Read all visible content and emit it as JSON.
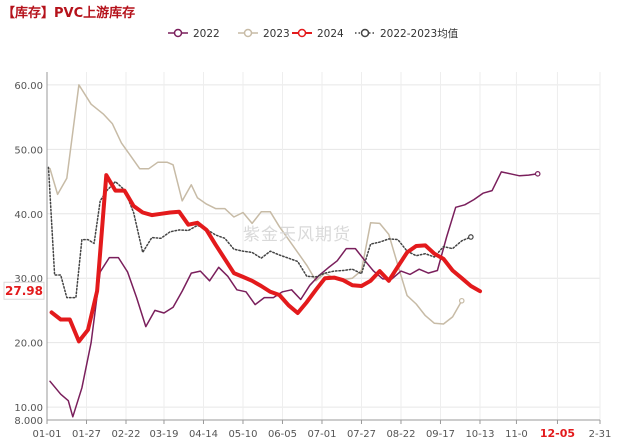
{
  "title": "【库存】PVC上游库存",
  "watermark": "紫金天风期货",
  "chart_data": {
    "type": "line",
    "title": "【库存】PVC上游库存",
    "xlabel": "",
    "ylabel": "",
    "ylim": [
      8,
      62
    ],
    "x_axis": {
      "first_date": "01-01",
      "last_date": "12-31"
    },
    "x_ticks": [
      "01-01",
      "01-27",
      "02-22",
      "03-19",
      "04-14",
      "05-10",
      "06-05",
      "07-01",
      "07-27",
      "08-22",
      "09-17",
      "10-13",
      "11-0",
      "12-05",
      "2-31"
    ],
    "x_tick_days": [
      1,
      27,
      53,
      78,
      104,
      130,
      156,
      182,
      208,
      234,
      260,
      286,
      310,
      337,
      365
    ],
    "highlight_tick": "12-05",
    "y_ticks": [
      "8.000",
      "10.00",
      "20.00",
      "30.00",
      "40.00",
      "50.00",
      "60.00"
    ],
    "y_tick_values": [
      8,
      10,
      20,
      30,
      40,
      50,
      60
    ],
    "current_value": {
      "label": "27.98",
      "value": 27.98
    },
    "grid": true,
    "legend_position": "top",
    "series": [
      {
        "name": "2022",
        "color": "#7a1f5c",
        "style": "line-marker",
        "points": [
          [
            3,
            14
          ],
          [
            10,
            12
          ],
          [
            15,
            11
          ],
          [
            18,
            8.5
          ],
          [
            24,
            13
          ],
          [
            30,
            20
          ],
          [
            36,
            31
          ],
          [
            42,
            33.2
          ],
          [
            48,
            33.2
          ],
          [
            54,
            31
          ],
          [
            60,
            27
          ],
          [
            66,
            22.5
          ],
          [
            72,
            25
          ],
          [
            78,
            24.6
          ],
          [
            84,
            25.5
          ],
          [
            90,
            28
          ],
          [
            96,
            30.8
          ],
          [
            102,
            31.1
          ],
          [
            108,
            29.6
          ],
          [
            114,
            31.7
          ],
          [
            120,
            30.3
          ],
          [
            126,
            28.2
          ],
          [
            132,
            27.9
          ],
          [
            138,
            25.9
          ],
          [
            144,
            27
          ],
          [
            150,
            27
          ],
          [
            156,
            27.9
          ],
          [
            162,
            28.2
          ],
          [
            168,
            26.7
          ],
          [
            174,
            28.9
          ],
          [
            180,
            30.4
          ],
          [
            186,
            31.6
          ],
          [
            192,
            32.7
          ],
          [
            198,
            34.6
          ],
          [
            204,
            34.6
          ],
          [
            210,
            32.8
          ],
          [
            216,
            31.1
          ],
          [
            222,
            29.9
          ],
          [
            228,
            29.9
          ],
          [
            234,
            31.1
          ],
          [
            240,
            30.6
          ],
          [
            246,
            31.4
          ],
          [
            252,
            30.8
          ],
          [
            258,
            31.2
          ],
          [
            264,
            36.4
          ],
          [
            270,
            41
          ],
          [
            276,
            41.4
          ],
          [
            282,
            42.2
          ],
          [
            288,
            43.2
          ],
          [
            294,
            43.6
          ],
          [
            300,
            46.5
          ],
          [
            306,
            46.2
          ],
          [
            312,
            45.9
          ],
          [
            318,
            46
          ],
          [
            324,
            46.2
          ]
        ]
      },
      {
        "name": "2023",
        "color": "#c7bba6",
        "style": "line-marker",
        "points": [
          [
            3,
            47
          ],
          [
            8,
            43
          ],
          [
            14,
            45.5
          ],
          [
            22,
            60
          ],
          [
            30,
            57
          ],
          [
            38,
            55.5
          ],
          [
            44,
            54
          ],
          [
            50,
            51
          ],
          [
            56,
            49
          ],
          [
            62,
            47
          ],
          [
            68,
            47
          ],
          [
            74,
            48
          ],
          [
            80,
            48
          ],
          [
            84,
            47.6
          ],
          [
            90,
            42
          ],
          [
            96,
            44.5
          ],
          [
            100,
            42.5
          ],
          [
            106,
            41.5
          ],
          [
            112,
            40.8
          ],
          [
            118,
            40.8
          ],
          [
            124,
            39.5
          ],
          [
            130,
            40.2
          ],
          [
            136,
            38.5
          ],
          [
            142,
            40.3
          ],
          [
            148,
            40.3
          ],
          [
            154,
            38
          ],
          [
            160,
            36
          ],
          [
            166,
            34
          ],
          [
            172,
            32
          ],
          [
            178,
            29.6
          ],
          [
            184,
            30.8
          ],
          [
            190,
            30
          ],
          [
            196,
            29.8
          ],
          [
            202,
            30
          ],
          [
            208,
            31.2
          ],
          [
            214,
            38.6
          ],
          [
            220,
            38.5
          ],
          [
            226,
            36.8
          ],
          [
            232,
            32
          ],
          [
            238,
            27.3
          ],
          [
            244,
            26
          ],
          [
            250,
            24.2
          ],
          [
            256,
            23
          ],
          [
            262,
            22.9
          ],
          [
            268,
            24
          ],
          [
            274,
            26.5
          ]
        ]
      },
      {
        "name": "2024",
        "color": "#e31a1c",
        "style": "thick-line",
        "points": [
          [
            4,
            24.7
          ],
          [
            10,
            23.6
          ],
          [
            16,
            23.6
          ],
          [
            22,
            20.2
          ],
          [
            28,
            22
          ],
          [
            34,
            28
          ],
          [
            40,
            46
          ],
          [
            46,
            43.6
          ],
          [
            52,
            43.6
          ],
          [
            58,
            41.2
          ],
          [
            64,
            40.2
          ],
          [
            70,
            39.8
          ],
          [
            76,
            40
          ],
          [
            82,
            40.2
          ],
          [
            88,
            40.3
          ],
          [
            94,
            38.3
          ],
          [
            100,
            38.6
          ],
          [
            106,
            37.5
          ],
          [
            112,
            35.2
          ],
          [
            118,
            33
          ],
          [
            124,
            30.8
          ],
          [
            130,
            30.2
          ],
          [
            136,
            29.6
          ],
          [
            142,
            28.8
          ],
          [
            148,
            27.9
          ],
          [
            154,
            27.4
          ],
          [
            160,
            25.8
          ],
          [
            166,
            24.6
          ],
          [
            172,
            26.3
          ],
          [
            178,
            28.2
          ],
          [
            184,
            30
          ],
          [
            190,
            30.1
          ],
          [
            196,
            29.7
          ],
          [
            202,
            28.9
          ],
          [
            208,
            28.8
          ],
          [
            214,
            29.6
          ],
          [
            220,
            31.1
          ],
          [
            226,
            29.6
          ],
          [
            232,
            31.8
          ],
          [
            238,
            34
          ],
          [
            244,
            35
          ],
          [
            250,
            35.1
          ],
          [
            256,
            33.8
          ],
          [
            262,
            33
          ],
          [
            268,
            31.2
          ],
          [
            274,
            30
          ],
          [
            280,
            28.8
          ],
          [
            286,
            27.98
          ]
        ]
      },
      {
        "name": "2022-2023均值",
        "color": "#444444",
        "style": "dotted-marker",
        "points": [
          [
            2,
            47.2
          ],
          [
            6,
            30.5
          ],
          [
            10,
            30.5
          ],
          [
            14,
            27
          ],
          [
            20,
            27
          ],
          [
            24,
            36
          ],
          [
            28,
            36
          ],
          [
            32,
            35.4
          ],
          [
            36,
            42
          ],
          [
            40,
            43.5
          ],
          [
            46,
            45
          ],
          [
            52,
            43.7
          ],
          [
            58,
            40.2
          ],
          [
            64,
            34
          ],
          [
            70,
            36.3
          ],
          [
            76,
            36.2
          ],
          [
            82,
            37.2
          ],
          [
            88,
            37.5
          ],
          [
            94,
            37.4
          ],
          [
            100,
            38.2
          ],
          [
            106,
            37.6
          ],
          [
            112,
            36.7
          ],
          [
            118,
            36.2
          ],
          [
            124,
            34.5
          ],
          [
            130,
            34.2
          ],
          [
            136,
            34
          ],
          [
            142,
            33.1
          ],
          [
            148,
            34.2
          ],
          [
            154,
            33.6
          ],
          [
            160,
            33.1
          ],
          [
            166,
            32.6
          ],
          [
            172,
            30.3
          ],
          [
            178,
            30.2
          ],
          [
            184,
            30.8
          ],
          [
            190,
            31.1
          ],
          [
            196,
            31.2
          ],
          [
            202,
            31.4
          ],
          [
            208,
            30.7
          ],
          [
            214,
            35.3
          ],
          [
            220,
            35.6
          ],
          [
            226,
            36.1
          ],
          [
            232,
            36
          ],
          [
            238,
            34.2
          ],
          [
            244,
            33.5
          ],
          [
            250,
            33.8
          ],
          [
            256,
            33.3
          ],
          [
            262,
            34.9
          ],
          [
            268,
            34.6
          ],
          [
            274,
            35.8
          ],
          [
            280,
            36.4
          ]
        ]
      }
    ]
  }
}
